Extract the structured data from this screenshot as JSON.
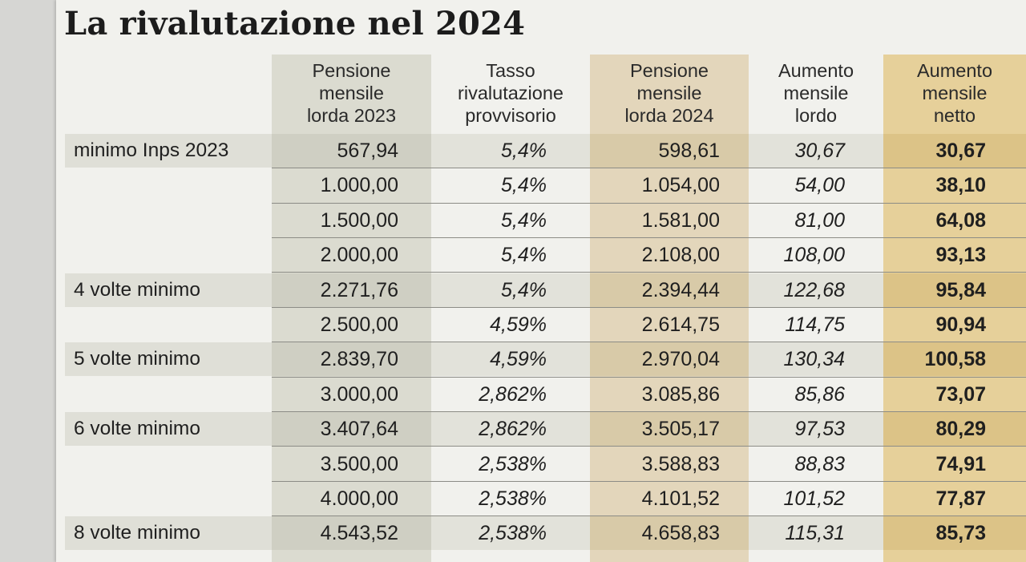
{
  "title": "La rivalutazione nel 2024",
  "headers": [
    "Pensione\nmensile\nlorda 2023",
    "Tasso\nrivalutazione\nprovvisorio",
    "Pensione\nmensile\nlorda 2024",
    "Aumento\nmensile\nlordo",
    "Aumento\nmensile\nnetto"
  ],
  "rows": [
    {
      "label": "minimo Inps 2023",
      "values": [
        "567,94",
        "5,4%",
        "598,61",
        "30,67",
        "30,67"
      ]
    },
    {
      "label": "",
      "values": [
        "1.000,00",
        "5,4%",
        "1.054,00",
        "54,00",
        "38,10"
      ]
    },
    {
      "label": "",
      "values": [
        "1.500,00",
        "5,4%",
        "1.581,00",
        "81,00",
        "64,08"
      ]
    },
    {
      "label": "",
      "values": [
        "2.000,00",
        "5,4%",
        "2.108,00",
        "108,00",
        "93,13"
      ]
    },
    {
      "label": "4 volte minimo",
      "values": [
        "2.271,76",
        "5,4%",
        "2.394,44",
        "122,68",
        "95,84"
      ]
    },
    {
      "label": "",
      "values": [
        "2.500,00",
        "4,59%",
        "2.614,75",
        "114,75",
        "90,94"
      ]
    },
    {
      "label": "5 volte minimo",
      "values": [
        "2.839,70",
        "4,59%",
        "2.970,04",
        "130,34",
        "100,58"
      ]
    },
    {
      "label": "",
      "values": [
        "3.000,00",
        "2,862%",
        "3.085,86",
        "85,86",
        "73,07"
      ]
    },
    {
      "label": "6 volte minimo",
      "values": [
        "3.407,64",
        "2,862%",
        "3.505,17",
        "97,53",
        "80,29"
      ]
    },
    {
      "label": "",
      "values": [
        "3.500,00",
        "2,538%",
        "3.588,83",
        "88,83",
        "74,91"
      ]
    },
    {
      "label": "",
      "values": [
        "4.000,00",
        "2,538%",
        "4.101,52",
        "101,52",
        "77,87"
      ]
    },
    {
      "label": "8 volte minimo",
      "values": [
        "4.543,52",
        "2,538%",
        "4.658,83",
        "115,31",
        "85,73"
      ]
    }
  ],
  "colors": {
    "background": "#f1f1ed",
    "col_2023": "#dbdbd0",
    "col_2024": "#e3d6bb",
    "col_netto": "#e6d09a"
  }
}
